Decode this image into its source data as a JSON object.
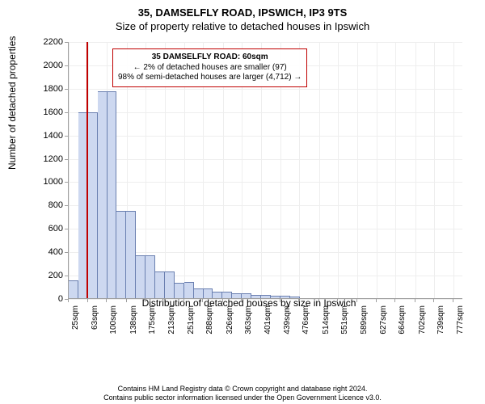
{
  "header": {
    "title": "35, DAMSELFLY ROAD, IPSWICH, IP3 9TS",
    "subtitle": "Size of property relative to detached houses in Ipswich"
  },
  "chart": {
    "type": "histogram",
    "ylabel": "Number of detached properties",
    "xlabel": "Distribution of detached houses by size in Ipswich",
    "xmin": 25,
    "xmax": 796,
    "ylim": [
      0,
      2200
    ],
    "ytick_step": 200,
    "xticks": [
      25,
      63,
      100,
      138,
      175,
      213,
      251,
      288,
      326,
      363,
      401,
      439,
      476,
      514,
      551,
      589,
      627,
      664,
      702,
      739,
      777
    ],
    "xtick_unit": "sqm",
    "bin_width": 18.8,
    "bar_color": "#cdd8f0",
    "bar_border_color": "#6a7fb0",
    "grid_color": "#eeeeee",
    "axis_color": "#9e9e9e",
    "background_color": "#ffffff",
    "bins": [
      {
        "start": 25,
        "count": 150
      },
      {
        "start": 43.8,
        "count": 1590
      },
      {
        "start": 62.6,
        "count": 1590
      },
      {
        "start": 81.4,
        "count": 1770
      },
      {
        "start": 100.2,
        "count": 1770
      },
      {
        "start": 119,
        "count": 745
      },
      {
        "start": 137.8,
        "count": 750
      },
      {
        "start": 156.6,
        "count": 370
      },
      {
        "start": 175.4,
        "count": 370
      },
      {
        "start": 194.2,
        "count": 228
      },
      {
        "start": 213,
        "count": 230
      },
      {
        "start": 231.8,
        "count": 135
      },
      {
        "start": 250.6,
        "count": 140
      },
      {
        "start": 269.4,
        "count": 82
      },
      {
        "start": 288.2,
        "count": 85
      },
      {
        "start": 307,
        "count": 52
      },
      {
        "start": 325.8,
        "count": 55
      },
      {
        "start": 344.6,
        "count": 40
      },
      {
        "start": 363.4,
        "count": 40
      },
      {
        "start": 382.2,
        "count": 30
      },
      {
        "start": 401,
        "count": 28
      },
      {
        "start": 419.8,
        "count": 22
      },
      {
        "start": 438.6,
        "count": 18
      },
      {
        "start": 457.4,
        "count": 14
      }
    ],
    "marker": {
      "value": 60,
      "color": "#c00000",
      "line_width": 2
    },
    "annotation": {
      "line1": "35 DAMSELFLY ROAD: 60sqm",
      "line2": "← 2% of detached houses are smaller (97)",
      "line3": "98% of semi-detached houses are larger (4,712) →",
      "border_color": "#c00000"
    }
  },
  "footer": {
    "line1": "Contains HM Land Registry data © Crown copyright and database right 2024.",
    "line2": "Contains public sector information licensed under the Open Government Licence v3.0."
  }
}
